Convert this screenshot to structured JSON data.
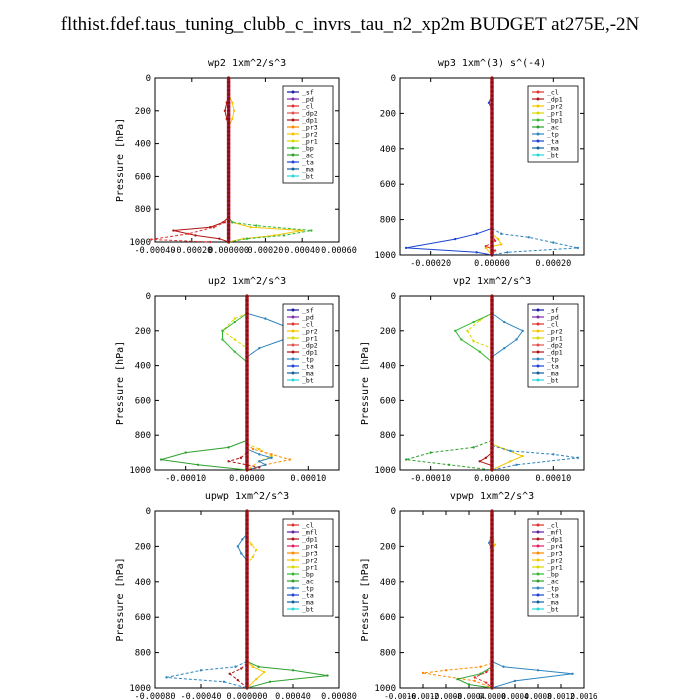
{
  "page": {
    "title": "flthist.fdef.taus_tuning_clubb_c_invrs_tau_n2_xp2m  BUDGET at275E,-2N"
  },
  "colors": {
    "_sf": "#1a1aa0",
    "_pd": "#7d2aa8",
    "_cl": "#e03030",
    "_dp2": "#e05050",
    "_dp1": "#b01515",
    "_pr3": "#ff8a00",
    "_pr2": "#f2c600",
    "_pr1": "#d8d800",
    "_bp": "#35b935",
    "_ac": "#2ea02e",
    "_tp": "#2f85c0",
    "_ta": "#1a44d0",
    "_ma": "#1060a0",
    "_bt": "#28d8d8",
    "_mfl": "#6020a0",
    "_pr4": "#e02060",
    "_bp1": "#35b935",
    "_pr5": "#d04040"
  },
  "chart_data": [
    {
      "type": "line",
      "title": "wp2   1xm^2/s^3",
      "ylabel": "Pressure [hPa]",
      "xlim": [
        -0.0004,
        0.0006
      ],
      "ylim": [
        1000,
        0
      ],
      "xticks": [
        -0.0004,
        -0.0002,
        0.0,
        0.0002,
        0.0004,
        0.0006
      ],
      "xtick_labels": [
        "-0.00040",
        "-0.00020",
        "0.000000",
        "0.00020",
        "0.00040",
        "0.00060"
      ],
      "yticks": [
        0,
        200,
        400,
        600,
        800,
        1000
      ],
      "legend": [
        "_sf",
        "_pd",
        "_cl",
        "_dp2",
        "_dp1",
        "_pr3",
        "_pr2",
        "_pr1",
        "_bp",
        "_ac",
        "_ta",
        "_ma",
        "_bt"
      ],
      "legend_position": "top-right",
      "series": [
        {
          "name": "_pr2",
          "x": [
            0,
            2e-05,
            3e-05,
            2e-05,
            0,
            0,
            2e-05,
            0.00012,
            0.0004,
            0.00025,
            8e-05,
            0
          ],
          "y": [
            100,
            150,
            200,
            250,
            300,
            850,
            880,
            910,
            930,
            960,
            980,
            1000
          ]
        },
        {
          "name": "_bp",
          "x": [
            0,
            0,
            2e-05,
            0.00015,
            0.00045,
            0.0003,
            0.0001,
            0
          ],
          "y": [
            100,
            850,
            880,
            900,
            930,
            960,
            980,
            1000
          ]
        },
        {
          "name": "_dp1",
          "x": [
            0,
            -1e-05,
            -2e-05,
            -1e-05,
            0,
            0,
            -3e-05,
            -0.0001,
            -0.0003,
            -0.00018,
            -5e-05,
            0
          ],
          "y": [
            100,
            150,
            200,
            250,
            300,
            850,
            880,
            910,
            930,
            960,
            980,
            1000
          ]
        },
        {
          "name": "_cl",
          "x": [
            0,
            -2e-05,
            -8e-05,
            -0.00022,
            -0.00042,
            -0.0001
          ],
          "y": [
            850,
            880,
            910,
            950,
            985,
            1000
          ]
        }
      ]
    },
    {
      "type": "line",
      "title": "wp3   1xm^(3) s^(-4)",
      "ylabel": "",
      "xlim": [
        -0.0003,
        0.0003
      ],
      "ylim": [
        1000,
        0
      ],
      "xticks": [
        -0.0002,
        0.0,
        0.0002
      ],
      "xtick_labels": [
        "-0.00020",
        "0.00000",
        "0.00020"
      ],
      "yticks": [
        0,
        200,
        400,
        600,
        800,
        1000
      ],
      "legend": [
        "_cl",
        "_dp1",
        "_pr2",
        "_pr1",
        "_bp1",
        "_ac",
        "_tp",
        "_ta",
        "_ma",
        "_bt"
      ],
      "legend_position": "top-right",
      "series": [
        {
          "name": "_ta",
          "x": [
            0,
            -1e-05,
            0,
            0,
            -5e-05,
            -0.00012,
            -0.00028,
            -5e-05,
            0
          ],
          "y": [
            100,
            140,
            180,
            850,
            880,
            910,
            960,
            985,
            1000
          ]
        },
        {
          "name": "_tp",
          "x": [
            0,
            3e-05,
            0.00012,
            0.0002,
            0.00028,
            5e-05,
            0
          ],
          "y": [
            850,
            880,
            900,
            930,
            960,
            985,
            1000
          ]
        },
        {
          "name": "_pr2",
          "x": [
            0,
            2e-05,
            3e-05,
            -2e-05,
            0
          ],
          "y": [
            880,
            910,
            940,
            960,
            1000
          ]
        },
        {
          "name": "_cl",
          "x": [
            0,
            1e-05,
            -2e-05,
            1e-05,
            0
          ],
          "y": [
            880,
            920,
            950,
            975,
            1000
          ]
        }
      ]
    },
    {
      "type": "line",
      "title": "up2   1xm^2/s^3",
      "ylabel": "Pressure [hPa]",
      "xlim": [
        -0.00015,
        0.00015
      ],
      "ylim": [
        1000,
        0
      ],
      "xticks": [
        -0.0001,
        0.0,
        0.0001
      ],
      "xtick_labels": [
        "-0.00010",
        "0.00000",
        "0.00010"
      ],
      "yticks": [
        0,
        200,
        400,
        600,
        800,
        1000
      ],
      "legend": [
        "_sf",
        "_pd",
        "_cl",
        "_pr2",
        "_pr1",
        "_dp2",
        "_dp1",
        "_tp",
        "_ta",
        "_ma",
        "_bt"
      ],
      "legend_position": "top-right",
      "series": [
        {
          "name": "_tp",
          "x": [
            0,
            3e-05,
            8e-05,
            6e-05,
            2e-05,
            0
          ],
          "y": [
            100,
            130,
            200,
            250,
            300,
            350
          ]
        },
        {
          "name": "_pr1",
          "x": [
            0,
            -2e-05,
            -4e-05,
            -2e-05,
            0
          ],
          "y": [
            100,
            130,
            200,
            250,
            300
          ]
        },
        {
          "name": "_bp",
          "x": [
            0,
            -2e-05,
            -4e-05,
            -4e-05,
            -2e-05,
            0
          ],
          "y": [
            100,
            150,
            200,
            250,
            320,
            380
          ]
        },
        {
          "name": "_pr2",
          "x": [
            0,
            2e-05,
            4e-05,
            2e-05,
            0
          ],
          "y": [
            850,
            880,
            920,
            950,
            1000
          ]
        },
        {
          "name": "_ac",
          "x": [
            0,
            -3e-05,
            -0.0001,
            -0.00014,
            -8e-05,
            0
          ],
          "y": [
            830,
            870,
            900,
            940,
            970,
            1000
          ]
        },
        {
          "name": "_pr3",
          "x": [
            0,
            1e-05,
            4e-05,
            7e-05,
            3e-05,
            0
          ],
          "y": [
            850,
            880,
            910,
            940,
            970,
            1000
          ]
        },
        {
          "name": "_tp",
          "x": [
            0,
            2e-05,
            4e-05,
            2e-05,
            3e-05,
            0
          ],
          "y": [
            880,
            910,
            930,
            950,
            970,
            1000
          ]
        },
        {
          "name": "_dp1",
          "x": [
            0,
            -1e-05,
            -3e-05,
            0,
            2e-05,
            0
          ],
          "y": [
            900,
            930,
            950,
            970,
            985,
            1000
          ]
        }
      ]
    },
    {
      "type": "line",
      "title": "vp2   1xm^2/s^3",
      "ylabel": "Pressure [hPa]",
      "xlim": [
        -0.00015,
        0.00015
      ],
      "ylim": [
        1000,
        0
      ],
      "xticks": [
        -0.0001,
        0.0,
        0.0001
      ],
      "xtick_labels": [
        "-0.00010",
        "0.00000",
        "0.00010"
      ],
      "yticks": [
        0,
        200,
        400,
        600,
        800,
        1000
      ],
      "legend": [
        "_sf",
        "_pd",
        "_cl",
        "_pr2",
        "_pr1",
        "_dp2",
        "_dp1",
        "_tp",
        "_ta",
        "_ma",
        "_bt"
      ],
      "legend_position": "top-right",
      "series": [
        {
          "name": "_tp",
          "x": [
            0,
            2e-05,
            5e-05,
            4e-05,
            2e-05,
            0
          ],
          "y": [
            100,
            150,
            200,
            250,
            300,
            350
          ]
        },
        {
          "name": "_pr1",
          "x": [
            0,
            -2e-05,
            -4e-05,
            -3e-05,
            0
          ],
          "y": [
            100,
            140,
            200,
            260,
            300
          ]
        },
        {
          "name": "_bp",
          "x": [
            0,
            -3e-05,
            -6e-05,
            -5e-05,
            -2e-05,
            0
          ],
          "y": [
            100,
            150,
            200,
            250,
            320,
            380
          ]
        },
        {
          "name": "_ac",
          "x": [
            0,
            -3e-05,
            -0.0001,
            -0.00014,
            -7e-05,
            0
          ],
          "y": [
            830,
            870,
            900,
            940,
            970,
            1000
          ]
        },
        {
          "name": "_pr2",
          "x": [
            0,
            2e-05,
            5e-05,
            3e-05,
            0
          ],
          "y": [
            850,
            880,
            920,
            950,
            1000
          ]
        },
        {
          "name": "_tp",
          "x": [
            0,
            3e-05,
            0.0001,
            0.00014,
            4e-05,
            0
          ],
          "y": [
            860,
            890,
            910,
            930,
            970,
            1000
          ]
        },
        {
          "name": "_dp1",
          "x": [
            0,
            -1e-05,
            -2e-05,
            0,
            0
          ],
          "y": [
            900,
            930,
            950,
            975,
            1000
          ]
        }
      ]
    },
    {
      "type": "line",
      "title": "upwp   1xm^2/s^3",
      "ylabel": "Pressure [hPa]",
      "xlim": [
        -0.0008,
        0.0008
      ],
      "ylim": [
        1000,
        0
      ],
      "xticks": [
        -0.0008,
        -0.0004,
        0.0,
        0.0004,
        0.0008
      ],
      "xtick_labels": [
        "-0.00080",
        "-0.00040",
        "0.000000",
        "0.00040",
        "0.00080"
      ],
      "yticks": [
        0,
        200,
        400,
        600,
        800,
        1000
      ],
      "legend": [
        "_cl",
        "_mfl",
        "_dp1",
        "_pr4",
        "_pr3",
        "_pr2",
        "_pr1",
        "_bp",
        "_ac",
        "_tp",
        "_ta",
        "_ma",
        "_bt"
      ],
      "legend_position": "top-right",
      "series": [
        {
          "name": "_tp",
          "x": [
            0,
            -4e-05,
            -8e-05,
            -5e-05,
            0
          ],
          "y": [
            130,
            160,
            200,
            240,
            280
          ]
        },
        {
          "name": "_pr2",
          "x": [
            0,
            4e-05,
            8e-05,
            5e-05,
            0
          ],
          "y": [
            150,
            190,
            220,
            260,
            300
          ]
        },
        {
          "name": "_ac",
          "x": [
            0,
            0.0001,
            0.0004,
            0.0007,
            0.0002,
            0
          ],
          "y": [
            850,
            880,
            900,
            930,
            965,
            1000
          ]
        },
        {
          "name": "_tp",
          "x": [
            0,
            -0.0001,
            -0.0004,
            -0.0007,
            -0.0002,
            0
          ],
          "y": [
            850,
            880,
            900,
            940,
            965,
            1000
          ]
        },
        {
          "name": "_pr2",
          "x": [
            0,
            5e-05,
            0.00015,
            8e-05,
            0
          ],
          "y": [
            850,
            880,
            910,
            950,
            1000
          ]
        },
        {
          "name": "_dp1",
          "x": [
            0,
            -5e-05,
            -0.00015,
            -8e-05,
            0
          ],
          "y": [
            860,
            890,
            920,
            955,
            1000
          ]
        }
      ]
    },
    {
      "type": "line",
      "title": "vpwp   1xm^2/s^3",
      "ylabel": "Pressure [hPa]",
      "xlim": [
        -0.0016,
        0.0016
      ],
      "ylim": [
        1000,
        0
      ],
      "xticks": [
        -0.0016,
        -0.0012,
        -0.0008,
        -0.0004,
        0.0,
        0.0004,
        0.0008,
        0.0012,
        0.0016
      ],
      "xtick_labels": [
        "-0.0016",
        "-0.0012",
        "-0.0008",
        "-0.0004",
        "0.0000",
        "0.0004",
        "0.0008",
        "0.0012",
        "0.0016"
      ],
      "yticks": [
        0,
        200,
        400,
        600,
        800,
        1000
      ],
      "legend": [
        "_cl",
        "_mfl",
        "_dp1",
        "_pr4",
        "_pr3",
        "_pr2",
        "_pr1",
        "_bp",
        "_ac",
        "_tp",
        "_ta",
        "_ma",
        "_bt"
      ],
      "legend_position": "top-right",
      "series": [
        {
          "name": "_tp",
          "x": [
            0,
            -2e-05,
            -5e-05,
            -2e-05,
            0
          ],
          "y": [
            120,
            150,
            180,
            210,
            240
          ]
        },
        {
          "name": "_pr2",
          "x": [
            0,
            2e-05,
            5e-05,
            2e-05,
            0
          ],
          "y": [
            130,
            160,
            190,
            220,
            250
          ]
        },
        {
          "name": "_tp",
          "x": [
            0,
            0.0002,
            0.0008,
            0.0014,
            0.0004,
            0
          ],
          "y": [
            850,
            880,
            900,
            920,
            960,
            1000
          ]
        },
        {
          "name": "_pr3",
          "x": [
            0,
            -0.0002,
            -0.0008,
            -0.0012,
            -0.0003,
            0
          ],
          "y": [
            860,
            880,
            900,
            915,
            960,
            1000
          ]
        },
        {
          "name": "_ac",
          "x": [
            0,
            -0.0002,
            -0.0006,
            -0.0004,
            0
          ],
          "y": [
            880,
            920,
            950,
            980,
            1000
          ]
        },
        {
          "name": "_cl",
          "x": [
            0,
            -0.0001,
            -0.0003,
            -0.0001,
            0
          ],
          "y": [
            880,
            910,
            940,
            970,
            1000
          ]
        }
      ]
    }
  ]
}
